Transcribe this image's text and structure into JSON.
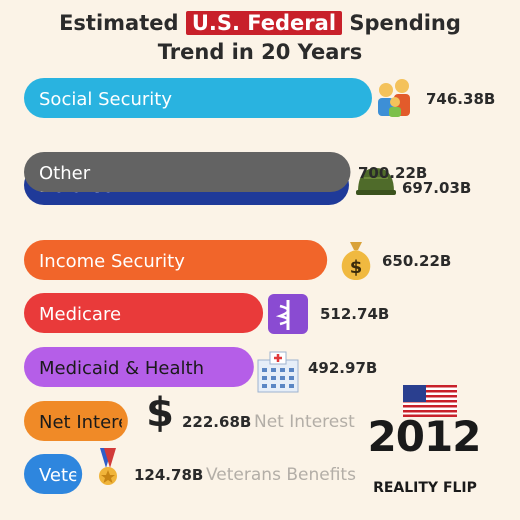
{
  "title": {
    "before": "Estimated",
    "highlight": "U.S. Federal",
    "after": "Spending",
    "line2": "Trend in 20 Years"
  },
  "year": "2012",
  "brand": "REALITY FLIP",
  "colors": {
    "background": "#fbf3e7",
    "title_highlight": "#c8202a",
    "social_security": "#29b3e0",
    "other": "#636363",
    "defense": "#1f3a99",
    "income_security": "#f1652a",
    "medicare": "#e93a3a",
    "medicaid_health": "#b55ee8",
    "net_interest": "#f08a27",
    "veterans": "#2e86de"
  },
  "chart_data": {
    "type": "bar",
    "orientation": "horizontal",
    "unit": "B",
    "bars": [
      {
        "label": "Social Security",
        "value": 746.38,
        "value_label": "746.38B",
        "icon": "family-icon",
        "color": "#29b3e0"
      },
      {
        "label": "Defense",
        "value": 697.03,
        "value_label": "697.03B",
        "icon": "helmet-icon",
        "color": "#1f3a99"
      },
      {
        "label": "Other",
        "value": 700.22,
        "value_label": "700.22B",
        "icon": "",
        "color": "#636363"
      },
      {
        "label": "Income Security",
        "value": 650.22,
        "value_label": "650.22B",
        "icon": "money-bag-icon",
        "color": "#f1652a"
      },
      {
        "label": "Medicare",
        "value": 512.74,
        "value_label": "512.74B",
        "icon": "medical-icon",
        "color": "#e93a3a"
      },
      {
        "label": "Medicaid & Health",
        "value": 492.97,
        "value_label": "492.97B",
        "icon": "hospital-icon",
        "color": "#b55ee8"
      },
      {
        "label": "Net Interest",
        "display_label": "Net Intere",
        "value": 222.68,
        "value_label": "222.68B",
        "icon": "dollar-icon",
        "color": "#f08a27"
      },
      {
        "label": "Veterans Benefits",
        "display_label": "Vete",
        "value": 124.78,
        "value_label": "124.78B",
        "icon": "medal-icon",
        "color": "#2e86de"
      }
    ]
  }
}
